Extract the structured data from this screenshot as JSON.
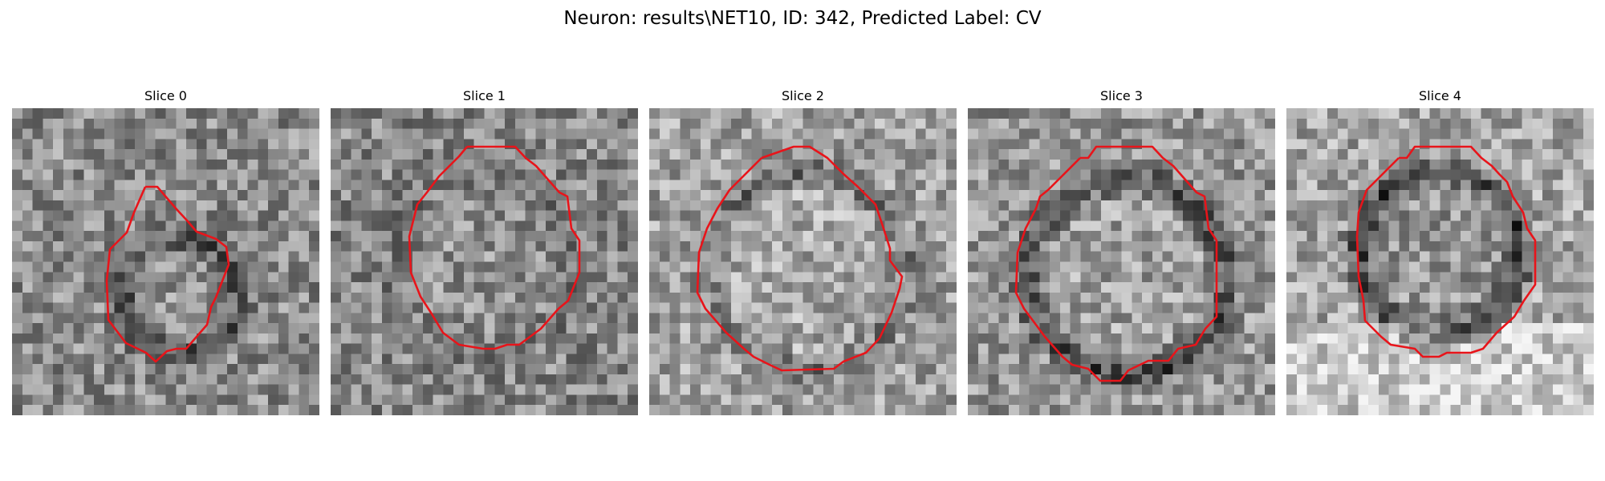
{
  "figure": {
    "title": "Neuron: results\\NET10, ID: 342, Predicted Label: CV"
  },
  "colors": {
    "contour": "#e8141a",
    "background": "#ffffff"
  },
  "panels": [
    {
      "title": "Slice 0",
      "image": "grayscale-em-patch",
      "seed": 11
    },
    {
      "title": "Slice 1",
      "image": "grayscale-em-patch",
      "seed": 23
    },
    {
      "title": "Slice 2",
      "image": "grayscale-em-patch",
      "seed": 37
    },
    {
      "title": "Slice 3",
      "image": "grayscale-em-patch",
      "seed": 53
    },
    {
      "title": "Slice 4",
      "image": "grayscale-em-patch",
      "seed": 71
    }
  ]
}
